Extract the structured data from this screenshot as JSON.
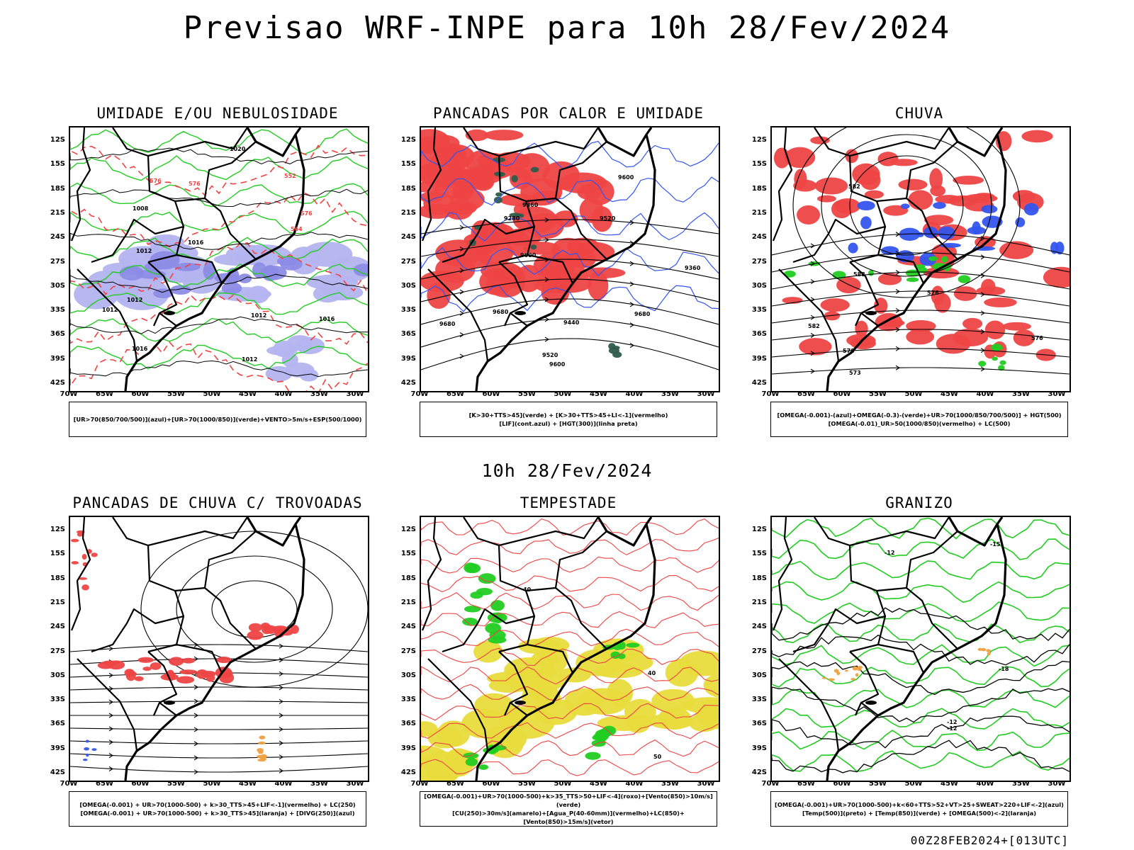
{
  "title": "Previsao WRF-INPE  para 10h 28/Fev/2024",
  "subtitle": "10h 28/Fev/2024",
  "footer": "00Z28FEB2024+[013UTC]",
  "axes": {
    "lat_labels": [
      "12S",
      "15S",
      "18S",
      "21S",
      "24S",
      "27S",
      "30S",
      "33S",
      "36S",
      "39S",
      "42S"
    ],
    "lon_labels": [
      "70W",
      "65W",
      "60W",
      "55W",
      "50W",
      "45W",
      "40W",
      "35W",
      "30W"
    ]
  },
  "colors": {
    "humidity_blue": "#b4b4f0",
    "humidity_blue_dark": "#8c8ce6",
    "green": "#22cc22",
    "red": "#ee4444",
    "red_dashed": "#ee4444",
    "yellow": "#e8dc3c",
    "dark_teal": "#2e5c4c",
    "blue_line": "#3355ee",
    "orange": "#f0a040"
  },
  "panels": [
    {
      "id": "umidade",
      "title": "UMIDADE E/OU NEBULOSIDADE",
      "legend_lines": [
        "[UR>70(850/700/500)](azul)+[UR>70(1000/850)](verde)+VENTO>5m/s+ESP(500/1000)"
      ],
      "contour_labels": [
        "1016",
        "1012",
        "1012",
        "1008",
        "1012",
        "1016",
        "1016",
        "1020",
        "1012",
        "1012",
        "576",
        "576",
        "564",
        "552",
        "576"
      ]
    },
    {
      "id": "pancadas-calor",
      "title": "PANCADAS POR CALOR E UMIDADE",
      "legend_lines": [
        "[K>30+TTS>45](verde) + [K>30+TTS>45+LI<-1](vermelho)",
        "[LIF](cont.azul) + [HGT(300)](linha preta)"
      ],
      "contour_labels": [
        "9680",
        "9600",
        "9680",
        "9600",
        "9520",
        "9440",
        "9360",
        "9280",
        "9520",
        "9360",
        "9600",
        "9680"
      ]
    },
    {
      "id": "chuva",
      "title": "CHUVA",
      "legend_lines": [
        "[OMEGA(-0.001)-(azul)+OMEGA(-0.3)-(verde)+UR>70(1000/850/700/500)] + HGT(500)",
        "[OMEGA(-0.01)_UR>50(1000/850)(vermelho) + LC(500)"
      ],
      "contour_labels": [
        "588",
        "582",
        "576",
        "573",
        "570",
        "582",
        "576"
      ]
    },
    {
      "id": "pancadas-trovoadas",
      "title": "PANCADAS DE CHUVA C/ TROVOADAS",
      "legend_lines": [
        "[OMEGA(-0.001) + UR>70(1000-500) + k>30_TTS>45+LIF<-1](vermelho) + LC(250)",
        "[OMEGA(-0.001) + UR>70(1000-500) + k>30_TTS>45](laranja) + [DIVG(250)](azul)"
      ],
      "contour_labels": []
    },
    {
      "id": "tempestade",
      "title": "TEMPESTADE",
      "legend_lines": [
        "[OMEGA(-0.001)+UR>70(1000-500)+k>35_TTS>50+LIF<-4](roxo)+[Vento(850)>10m/s](verde)",
        "[CU(250)>30m/s](amarelo)+[Agua_P(40-60mm)](vermelho)+LC(850)+[Vento(850)>15m/s](vetor)"
      ],
      "contour_labels": [
        "40",
        "40",
        "50"
      ]
    },
    {
      "id": "granizo",
      "title": "GRANIZO",
      "legend_lines": [
        "[OMEGA(-0.001)+UR>70(1000-500)+k<60+TTS>52+VT>25+SWEAT>220+LIF<-2](azul)",
        "[Temp(500)](preto) + [Temp(850)](verde) + [OMEGA(500)<-2](laranja)"
      ],
      "contour_labels": [
        "-12",
        "-12",
        "-15",
        "-18",
        "-12"
      ]
    }
  ]
}
